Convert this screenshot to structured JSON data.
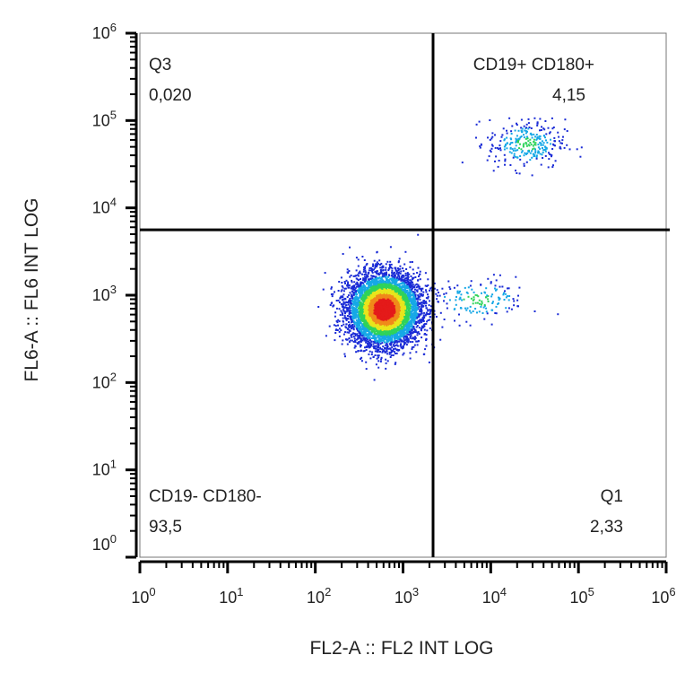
{
  "chart_data": {
    "type": "scatter",
    "plot_style": "flow-cytometry-density-dot-plot",
    "title": "",
    "xlabel": "FL2-A :: FL2 INT LOG",
    "ylabel": "FL6-A :: FL6 INT LOG",
    "x_scale": "log",
    "y_scale": "log",
    "xlim": [
      1,
      1000000
    ],
    "ylim": [
      1,
      1000000
    ],
    "x_tick_exponents": [
      "0",
      "1",
      "2",
      "3",
      "4",
      "5",
      "6"
    ],
    "y_tick_exponents": [
      "0",
      "1",
      "2",
      "3",
      "4",
      "5",
      "6"
    ],
    "tick_base": "10",
    "grid": false,
    "density_colors": [
      "#1a2bd6",
      "#16a8e6",
      "#2fd35a",
      "#e8e51c",
      "#f08a1a",
      "#e41a1a"
    ],
    "quadrant_gate": {
      "x_threshold": 2200,
      "y_threshold": 5600
    },
    "quadrants": [
      {
        "name": "Q3",
        "value": "0,020",
        "position": "top-left"
      },
      {
        "name": "CD19+ CD180+",
        "value": "4,15",
        "position": "top-right"
      },
      {
        "name": "CD19- CD180-",
        "value": "93,5",
        "position": "bottom-left"
      },
      {
        "name": "Q1",
        "value": "2,33",
        "position": "bottom-right"
      }
    ],
    "populations": [
      {
        "center": [
          600,
          700
        ],
        "spread_log10": [
          0.2,
          0.2
        ],
        "share": 0.935
      },
      {
        "center": [
          7000,
          900
        ],
        "spread_log10": [
          0.3,
          0.12
        ],
        "share": 0.0233
      },
      {
        "center": [
          25000,
          55000
        ],
        "spread_log10": [
          0.22,
          0.14
        ],
        "share": 0.0415
      }
    ]
  }
}
